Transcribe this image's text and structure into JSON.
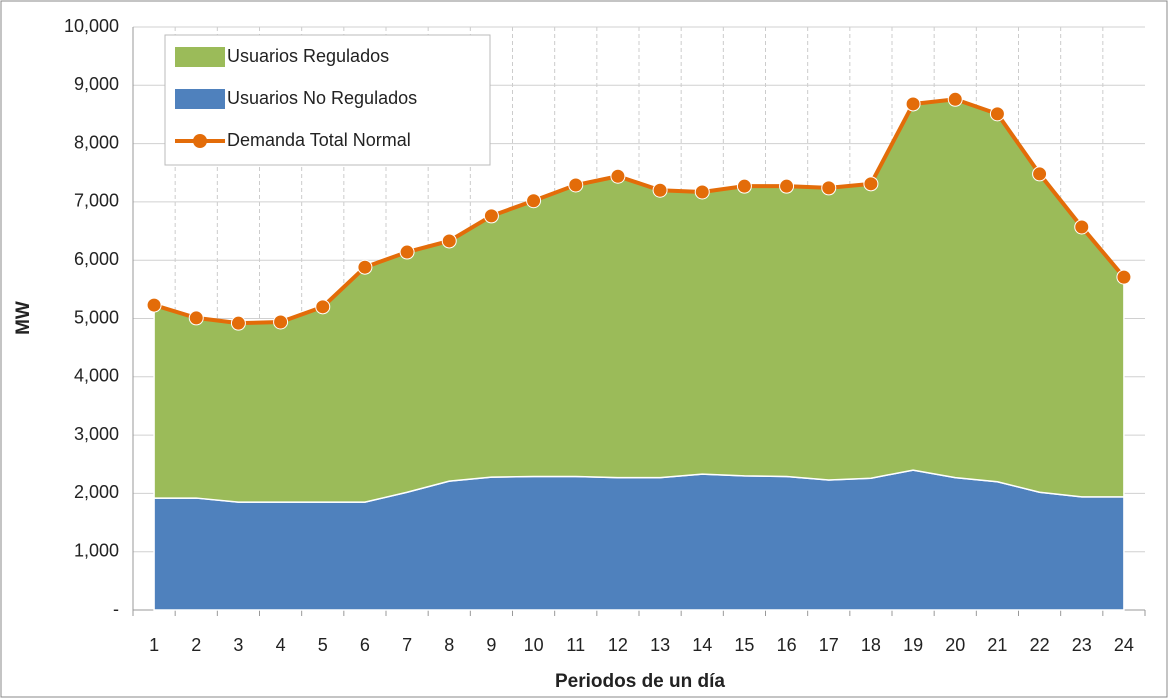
{
  "chart_data": {
    "type": "area",
    "stacked": true,
    "xlabel": "Periodos de un día",
    "ylabel": "MW",
    "categories": [
      "1",
      "2",
      "3",
      "4",
      "5",
      "6",
      "7",
      "8",
      "9",
      "10",
      "11",
      "12",
      "13",
      "14",
      "15",
      "16",
      "17",
      "18",
      "19",
      "20",
      "21",
      "22",
      "23",
      "24"
    ],
    "series": [
      {
        "name": "Usuarios Regulados",
        "color": "#9bbb59",
        "type": "area",
        "values": [
          3310,
          3090,
          3070,
          3090,
          3350,
          4030,
          4120,
          4120,
          4480,
          4730,
          5000,
          5170,
          4930,
          4840,
          4970,
          4980,
          5010,
          5050,
          6280,
          6490,
          6310,
          5460,
          4630,
          3770
        ]
      },
      {
        "name": "Usuarios No Regulados",
        "color": "#4f81bd",
        "type": "area",
        "values": [
          1920,
          1920,
          1850,
          1850,
          1850,
          1850,
          2020,
          2210,
          2280,
          2290,
          2290,
          2270,
          2270,
          2330,
          2300,
          2290,
          2230,
          2260,
          2400,
          2270,
          2200,
          2020,
          1940,
          1940
        ]
      },
      {
        "name": "Demanda Total Normal",
        "color": "#e36c09",
        "type": "line",
        "values": [
          5230,
          5010,
          4920,
          4940,
          5200,
          5880,
          6140,
          6330,
          6760,
          7020,
          7290,
          7440,
          7200,
          7170,
          7270,
          7270,
          7240,
          7310,
          8680,
          8760,
          8510,
          7480,
          6570,
          5710
        ]
      }
    ],
    "stack_order": [
      "Usuarios No Regulados",
      "Usuarios Regulados"
    ],
    "ylim": [
      0,
      10000
    ],
    "yticks": [
      {
        "value": 0,
        "label": "-"
      },
      {
        "value": 1000,
        "label": "1,000"
      },
      {
        "value": 2000,
        "label": "2,000"
      },
      {
        "value": 3000,
        "label": "3,000"
      },
      {
        "value": 4000,
        "label": "4,000"
      },
      {
        "value": 5000,
        "label": "5,000"
      },
      {
        "value": 6000,
        "label": "6,000"
      },
      {
        "value": 7000,
        "label": "7,000"
      },
      {
        "value": 8000,
        "label": "8,000"
      },
      {
        "value": 9000,
        "label": "9,000"
      },
      {
        "value": 10000,
        "label": "10,000"
      }
    ],
    "grid": true,
    "legend": "upper left"
  }
}
